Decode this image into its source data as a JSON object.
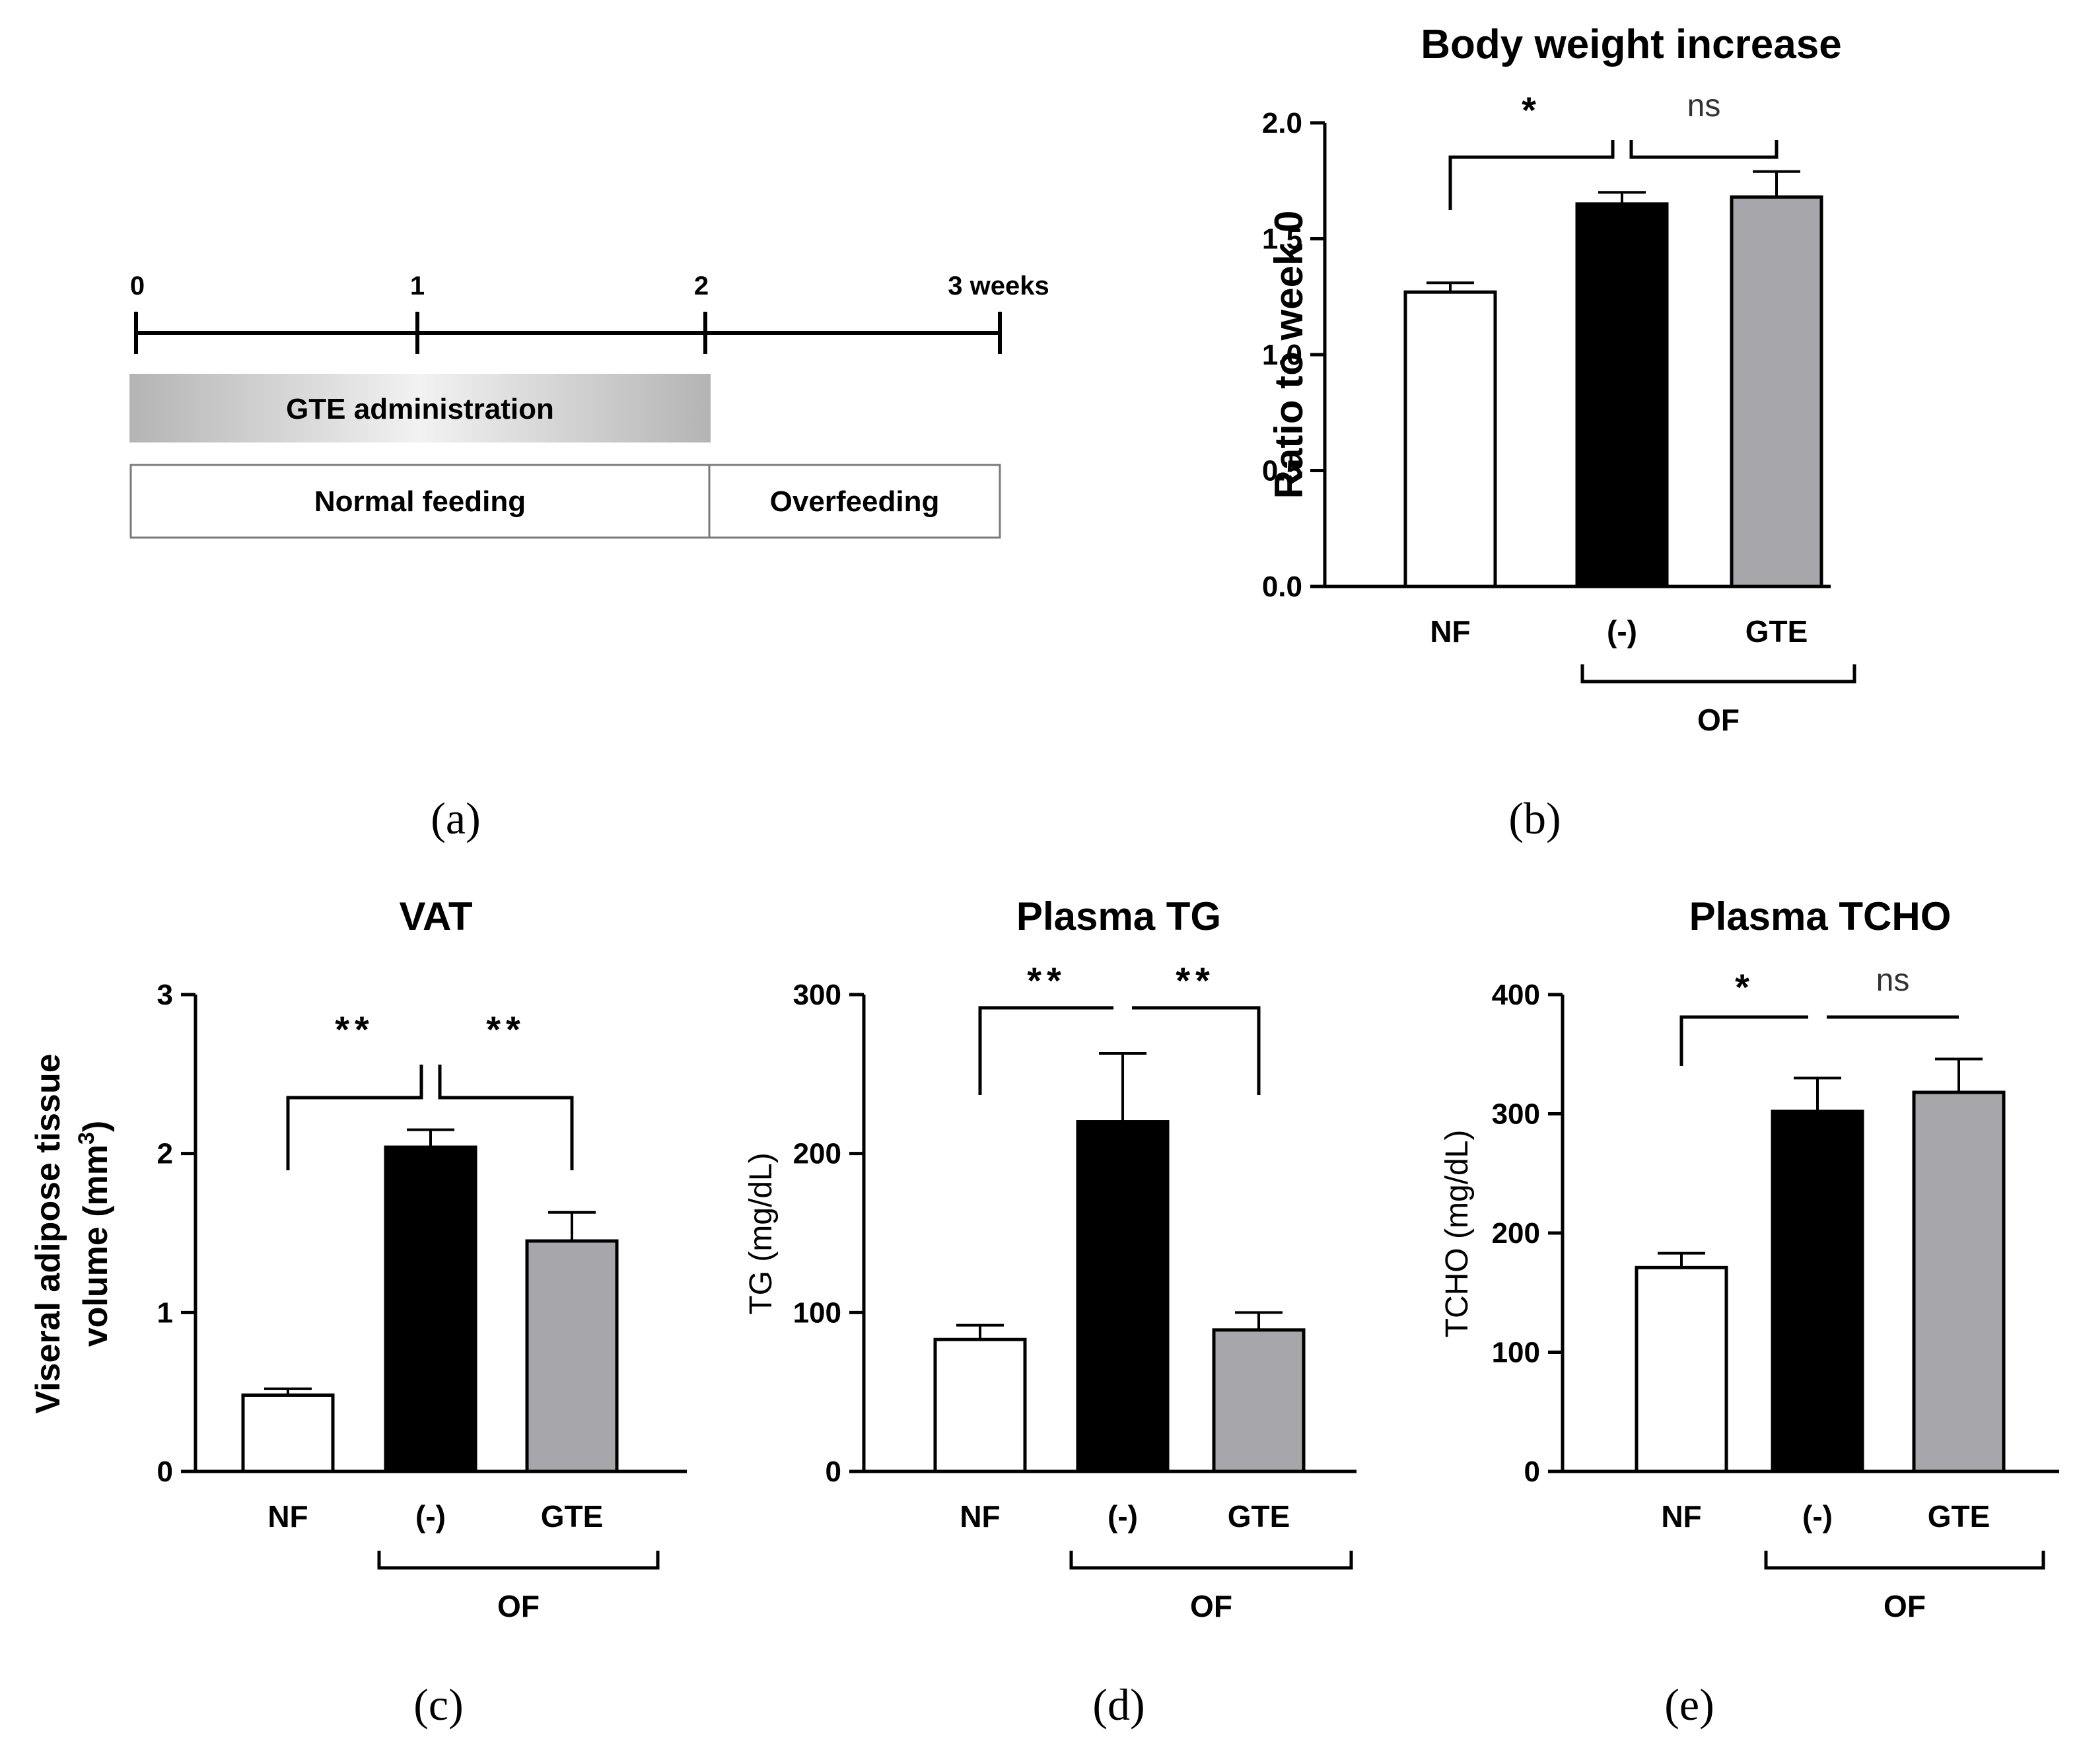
{
  "colors": {
    "nf": "#ffffff",
    "of": "#000000",
    "gte": "#a7a6ab",
    "stroke": "#000000",
    "text": "#000000",
    "ns_text": "#333333",
    "gte_box": "#c8c8c8"
  },
  "timeline": {
    "ticks": [
      "0",
      "1",
      "2",
      "3 weeks"
    ],
    "gte_label": "GTE administration",
    "normal_label": "Normal feeding",
    "over_label": "Overfeeding"
  },
  "panel_labels": {
    "a": "(a)",
    "b": "(b)",
    "c": "(c)",
    "d": "(d)",
    "e": "(e)"
  },
  "chart_data": [
    {
      "id": "b",
      "type": "bar",
      "title": "Body weight increase",
      "ylabel": "Ratio to week 0",
      "xlabel": "",
      "categories": [
        "NF",
        "(-)",
        "GTE"
      ],
      "values": [
        1.27,
        1.65,
        1.68
      ],
      "errors": [
        0.04,
        0.05,
        0.11
      ],
      "ylim": [
        0,
        2.0
      ],
      "yticks": [
        "0.0",
        "0.5",
        "1.0",
        "1.5",
        "2.0"
      ],
      "group_label": "OF",
      "significance": [
        {
          "from": 0,
          "to": 1,
          "label": "*"
        },
        {
          "from": 1,
          "to": 2,
          "label": "ns"
        }
      ]
    },
    {
      "id": "c",
      "type": "bar",
      "title": "VAT",
      "ylabel": "Viseral adipose tissue",
      "ylabel2": "volume (mm",
      "ylabel_sup": "3",
      "ylabel_end": ")",
      "xlabel": "",
      "categories": [
        "NF",
        "(-)",
        "GTE"
      ],
      "values": [
        0.48,
        2.04,
        1.45
      ],
      "errors": [
        0.04,
        0.11,
        0.18
      ],
      "ylim": [
        0,
        3
      ],
      "yticks": [
        "0",
        "1",
        "2",
        "3"
      ],
      "group_label": "OF",
      "significance": [
        {
          "from": 0,
          "to": 1,
          "label": "**"
        },
        {
          "from": 1,
          "to": 2,
          "label": "**"
        }
      ]
    },
    {
      "id": "d",
      "type": "bar",
      "title": "Plasma TG",
      "ylabel": "TG (mg/dL)",
      "xlabel": "",
      "categories": [
        "NF",
        "(-)",
        "GTE"
      ],
      "values": [
        83,
        220,
        89
      ],
      "errors": [
        9,
        43,
        11
      ],
      "ylim": [
        0,
        300
      ],
      "yticks": [
        "0",
        "100",
        "200",
        "300"
      ],
      "group_label": "OF",
      "significance": [
        {
          "from": 0,
          "to": 1,
          "label": "**"
        },
        {
          "from": 1,
          "to": 2,
          "label": "**"
        }
      ]
    },
    {
      "id": "e",
      "type": "bar",
      "title": "Plasma TCHO",
      "ylabel": "TCHO (mg/dL)",
      "xlabel": "",
      "categories": [
        "NF",
        "(-)",
        "GTE"
      ],
      "values": [
        171,
        302,
        318
      ],
      "errors": [
        12,
        28,
        28
      ],
      "ylim": [
        0,
        400
      ],
      "yticks": [
        "0",
        "100",
        "200",
        "300",
        "400"
      ],
      "group_label": "OF",
      "significance": [
        {
          "from": 0,
          "to": 1,
          "label": "*"
        },
        {
          "from": 1,
          "to": 2,
          "label": "ns"
        }
      ]
    }
  ]
}
